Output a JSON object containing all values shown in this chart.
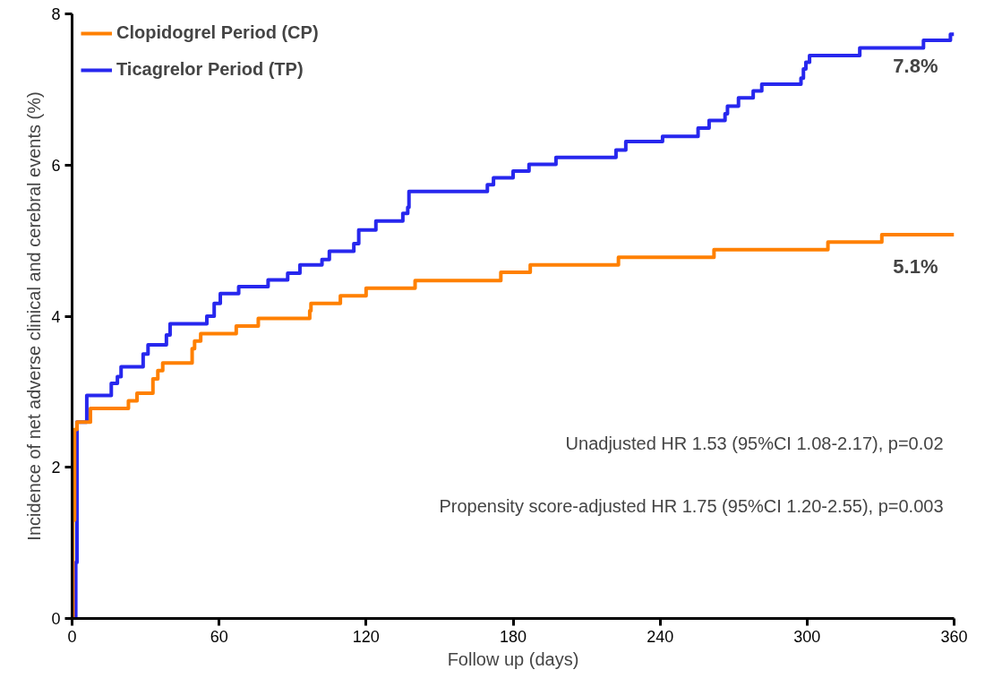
{
  "chart_data": {
    "type": "step",
    "xlabel": "Follow up (days)",
    "ylabel": "Incidence of net adverse clinical and cerebral events (%)",
    "xlim": [
      0,
      360
    ],
    "xticks": [
      0,
      60,
      120,
      180,
      240,
      300,
      360
    ],
    "ylim": [
      0,
      8
    ],
    "yticks": [
      0,
      2,
      4,
      6,
      8
    ],
    "grid": false,
    "legend": "top left",
    "line_style": "solid",
    "marker": "none",
    "series": [
      {
        "name": "Clopidogrel Period (CP)",
        "color": "#ff8000",
        "x": [
          0,
          0.3,
          1,
          2,
          7.5,
          23,
          26.5,
          33,
          35,
          37,
          49,
          50,
          52.5,
          67,
          76,
          97,
          97.5,
          109.5,
          120,
          140,
          175,
          187,
          223,
          262,
          308.5,
          330.5,
          360
        ],
        "values": [
          0,
          1.3,
          2.5,
          2.6,
          2.78,
          2.88,
          2.98,
          3.17,
          3.28,
          3.38,
          3.57,
          3.67,
          3.77,
          3.87,
          3.97,
          4.07,
          4.17,
          4.27,
          4.37,
          4.47,
          4.58,
          4.68,
          4.78,
          4.88,
          4.98,
          5.08,
          5.08
        ]
      },
      {
        "name": "Ticagrelor Period (TP)",
        "color": "#2727ee",
        "x": [
          0,
          1.5,
          2,
          6,
          16,
          18.5,
          20,
          29,
          31,
          38.5,
          40,
          55,
          58,
          60.5,
          68,
          80,
          88,
          93,
          102,
          105,
          115,
          117,
          124,
          135,
          137,
          137.5,
          169.5,
          172,
          180,
          186.5,
          197.5,
          222,
          226,
          241,
          255.5,
          260,
          266.5,
          267.5,
          272,
          278,
          281.5,
          297.5,
          298.5,
          299.5,
          301,
          321.5,
          347.5,
          358.5,
          360
        ],
        "values": [
          0,
          0.74,
          2.6,
          2.95,
          3.11,
          3.2,
          3.33,
          3.5,
          3.62,
          3.75,
          3.9,
          4.0,
          4.17,
          4.3,
          4.39,
          4.48,
          4.57,
          4.68,
          4.75,
          4.86,
          4.96,
          5.14,
          5.26,
          5.36,
          5.44,
          5.65,
          5.74,
          5.83,
          5.92,
          6.01,
          6.1,
          6.2,
          6.31,
          6.38,
          6.49,
          6.59,
          6.68,
          6.78,
          6.89,
          6.98,
          7.07,
          7.15,
          7.27,
          7.36,
          7.45,
          7.55,
          7.65,
          7.73,
          7.73
        ]
      }
    ],
    "annotations": [
      {
        "text": "7.8%",
        "x": 360,
        "y": 7.73
      },
      {
        "text": "5.1%",
        "x": 360,
        "y": 5.08
      },
      "Unadjusted HR 1.53 (95%CI 1.08-2.17), p=0.02",
      "Propensity score-adjusted HR 1.75 (95%CI 1.20-2.55), p=0.003"
    ]
  }
}
